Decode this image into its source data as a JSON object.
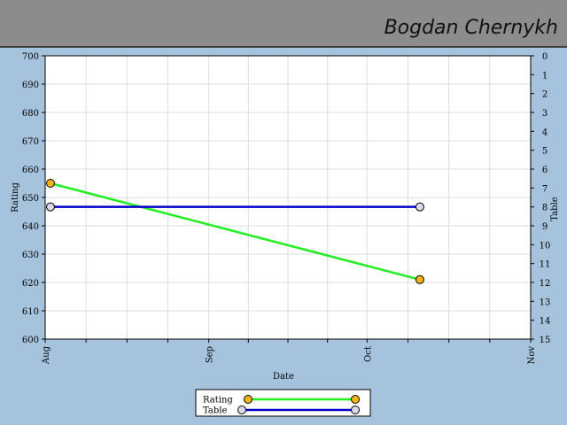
{
  "header": {
    "author": "Bogdan Chernykh"
  },
  "chart_data": {
    "type": "line",
    "x_label": "Date",
    "y_label": "Rating",
    "y2_label": "Table",
    "xlim": [
      0,
      92
    ],
    "xticks": [
      {
        "value": 0,
        "label": "Aug"
      },
      {
        "value": 31,
        "label": "Sep"
      },
      {
        "value": 61,
        "label": "Oct"
      },
      {
        "value": 92,
        "label": "Nov"
      }
    ],
    "xminorticks": [
      7.75,
      15.5,
      23.25,
      38.5,
      46,
      53.5,
      68.75,
      76.5,
      84.25
    ],
    "ylim": [
      600,
      700
    ],
    "yticks": [
      600,
      610,
      620,
      630,
      640,
      650,
      660,
      670,
      680,
      690,
      700
    ],
    "y2lim": [
      15,
      0
    ],
    "y2ticks": [
      0,
      1,
      2,
      3,
      4,
      5,
      6,
      7,
      8,
      9,
      10,
      11,
      12,
      13,
      14,
      15
    ],
    "grid": true,
    "series": [
      {
        "name": "Rating",
        "color": "#22ee22",
        "marker_color": "#f5b21a",
        "x": [
          1,
          71
        ],
        "values": [
          655,
          621
        ]
      },
      {
        "name": "Table",
        "color": "#0000cc",
        "marker_color": "#d8dce8",
        "axis": "y2",
        "x": [
          1,
          71
        ],
        "values": [
          8,
          8
        ]
      }
    ]
  }
}
